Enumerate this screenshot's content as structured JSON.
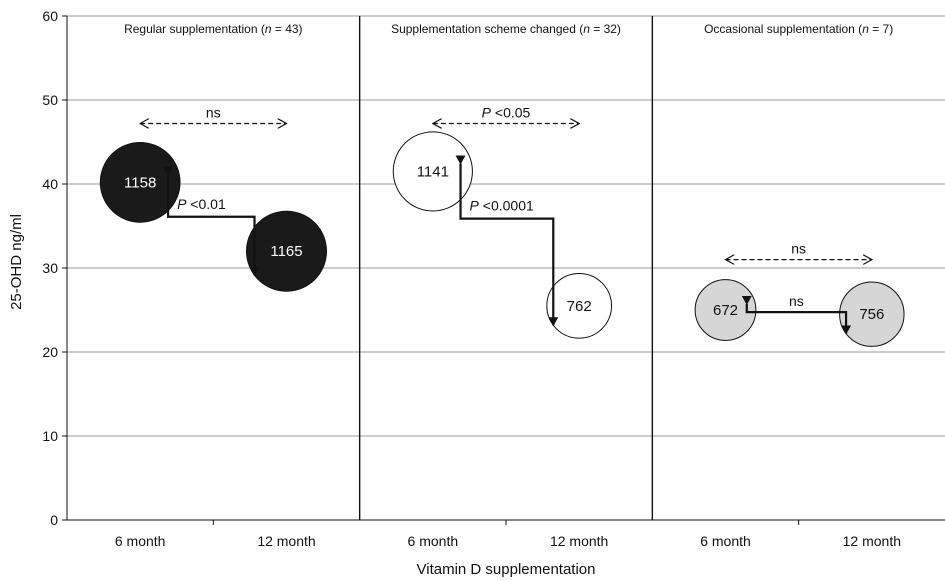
{
  "chart_data": {
    "type": "scatter",
    "subtype": "bubble",
    "ylabel": "25-OHD ng/ml",
    "xlabel": "Vitamin D supplementation",
    "ylim": [
      0,
      60
    ],
    "yticks": [
      0,
      10,
      20,
      30,
      40,
      50,
      60
    ],
    "grid": "horizontal",
    "panels": [
      {
        "title_prefix": "Regular supplementation (",
        "title_n": "n",
        "title_suffix": " = 43)",
        "categories": [
          "6 month",
          "12 month"
        ],
        "bubble_color": "#1a1a1a",
        "label_color": "#ffffff",
        "points": [
          {
            "x": "6 month",
            "y": 40.2,
            "size": 1158,
            "label": "1158"
          },
          {
            "x": "12 month",
            "y": 32.0,
            "size": 1165,
            "label": "1165"
          }
        ],
        "comparison_label": "ns",
        "change_label_p": "P",
        "change_label_rest": " <0.01"
      },
      {
        "title_prefix": "Supplementation scheme changed (",
        "title_n": "n",
        "title_suffix": " = 32)",
        "categories": [
          "6 month",
          "12 month"
        ],
        "bubble_color": "#ffffff",
        "label_color": "#111111",
        "points": [
          {
            "x": "6 month",
            "y": 41.5,
            "size": 1141,
            "label": "1141"
          },
          {
            "x": "12 month",
            "y": 25.5,
            "size": 762,
            "label": "762"
          }
        ],
        "comparison_label_p": "P",
        "comparison_label_rest": " <0.05",
        "change_label_p": "P",
        "change_label_rest": " <0.0001"
      },
      {
        "title_prefix": "Occasional supplementation (",
        "title_n": "n",
        "title_suffix": " = 7)",
        "categories": [
          "6 month",
          "12 month"
        ],
        "bubble_color": "#d6d6d6",
        "label_color": "#111111",
        "points": [
          {
            "x": "6 month",
            "y": 25.0,
            "size": 672,
            "label": "672"
          },
          {
            "x": "12 month",
            "y": 24.5,
            "size": 756,
            "label": "756"
          }
        ],
        "comparison_label": "ns",
        "change_label": "ns"
      }
    ]
  }
}
